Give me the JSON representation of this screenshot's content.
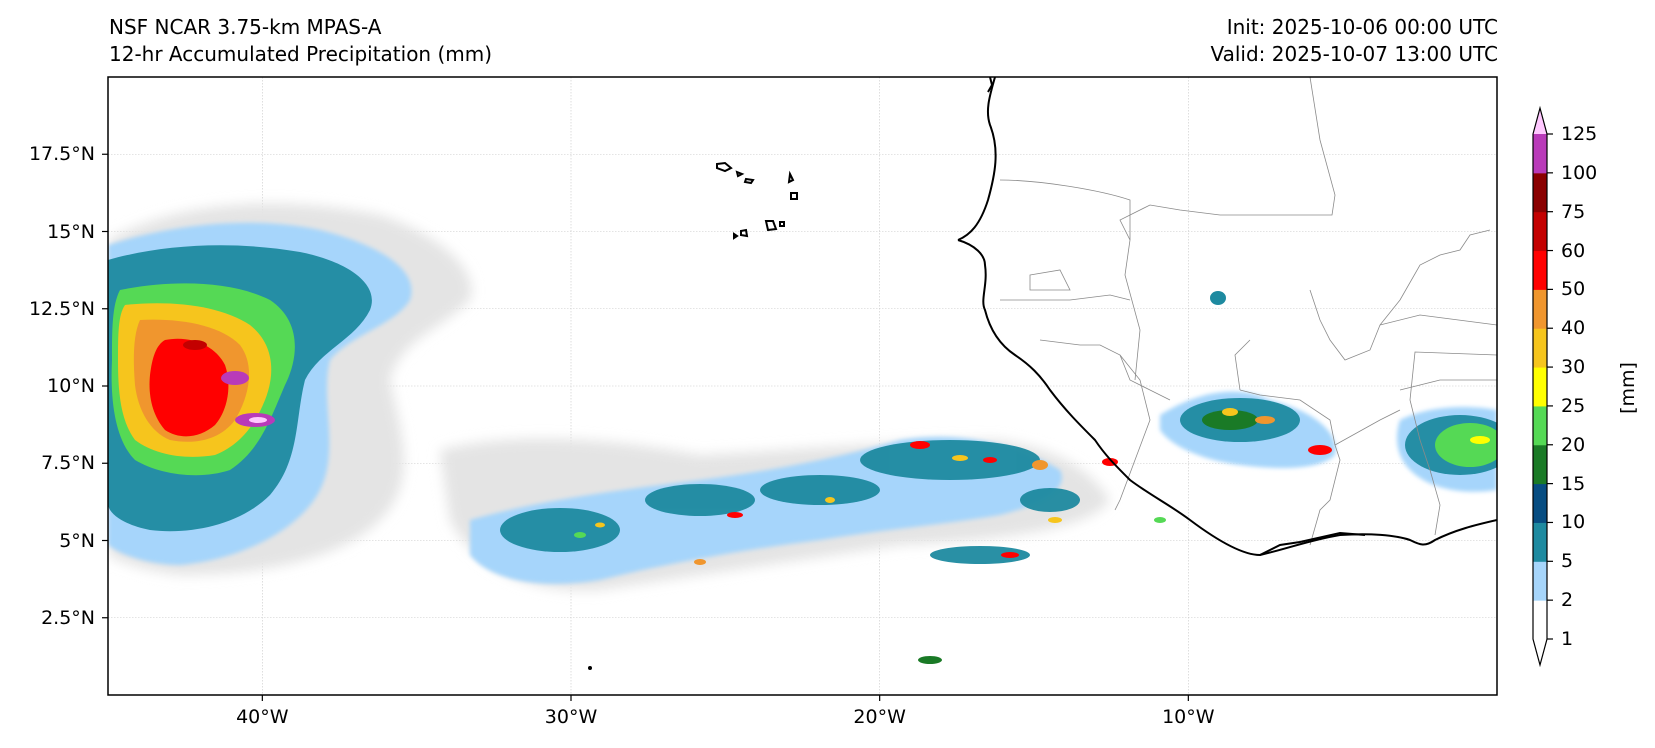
{
  "titles": {
    "left_line1": "NSF NCAR 3.75-km MPAS-A",
    "left_line2": "12-hr Accumulated Precipitation (mm)",
    "right_line1": "Init: 2025-10-06 00:00 UTC",
    "right_line2": "Valid: 2025-10-07 13:00 UTC"
  },
  "map": {
    "extent": {
      "lon_min": -45,
      "lon_max": 0,
      "lat_min": 0,
      "lat_max": 20
    },
    "grid": true,
    "lat_ticks": [
      {
        "value": 2.5,
        "label": "2.5°N"
      },
      {
        "value": 5,
        "label": "5°N"
      },
      {
        "value": 7.5,
        "label": "7.5°N"
      },
      {
        "value": 10,
        "label": "10°N"
      },
      {
        "value": 12.5,
        "label": "12.5°N"
      },
      {
        "value": 15,
        "label": "15°N"
      },
      {
        "value": 17.5,
        "label": "17.5°N"
      }
    ],
    "lon_ticks": [
      {
        "value": -40,
        "label": "40°W"
      },
      {
        "value": -30,
        "label": "30°W"
      },
      {
        "value": -20,
        "label": "20°W"
      },
      {
        "value": -10,
        "label": "10°W"
      }
    ]
  },
  "colorbar": {
    "unit_label": "[mm]",
    "extend": "both",
    "levels": [
      "1",
      "2",
      "5",
      "10",
      "15",
      "20",
      "25",
      "30",
      "40",
      "50",
      "60",
      "75",
      "100",
      "125"
    ],
    "colors": [
      "#ffffff",
      "#a6d5fb",
      "#1e8aa0",
      "#074d82",
      "#1a7a26",
      "#55d955",
      "#ffff00",
      "#f6c51d",
      "#f0962e",
      "#ff0000",
      "#c30000",
      "#8a0000",
      "#b93ab9",
      "#ffc8ff"
    ],
    "over_color": "#ffc8ff",
    "under_color": "#ffffff"
  }
}
